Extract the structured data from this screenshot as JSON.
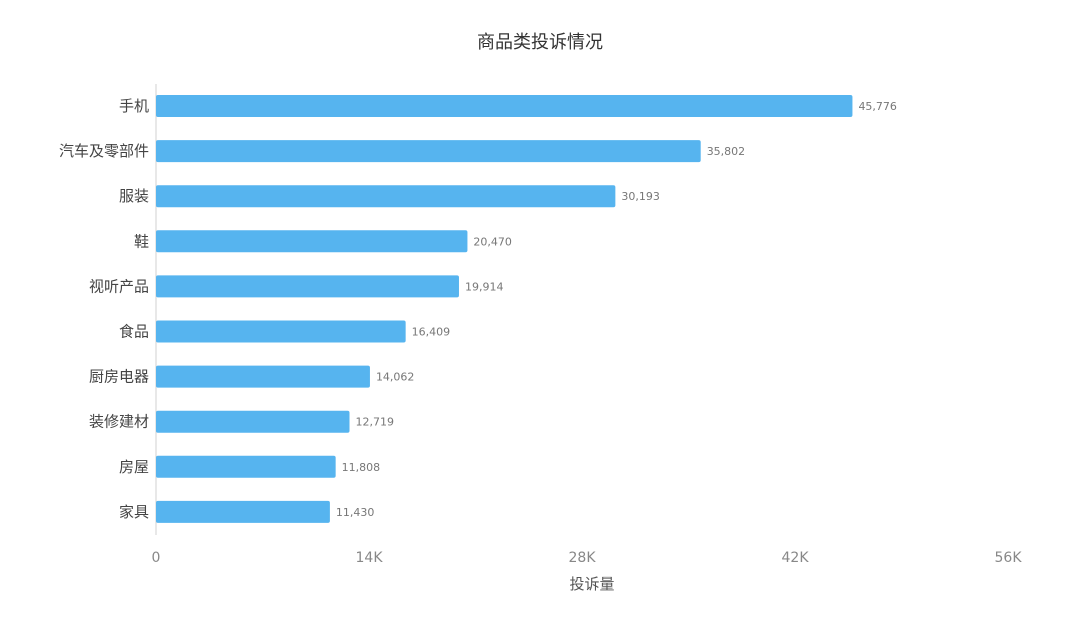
{
  "chart_data": {
    "type": "bar",
    "orientation": "horizontal",
    "title": "商品类投诉情况",
    "xlabel": "投诉量",
    "ylabel": "",
    "categories": [
      "手机",
      "汽车及零部件",
      "服装",
      "鞋",
      "视听产品",
      "食品",
      "厨房电器",
      "装修建材",
      "房屋",
      "家具"
    ],
    "values": [
      45776,
      35802,
      30193,
      20470,
      19914,
      16409,
      14062,
      12719,
      11808,
      11430
    ],
    "value_labels": [
      "45,776",
      "35,802",
      "30,193",
      "20,470",
      "19,914",
      "16,409",
      "14,062",
      "12,719",
      "11,808",
      "11,430"
    ],
    "xlim": [
      0,
      56000
    ],
    "x_ticks": [
      0,
      14000,
      28000,
      42000,
      56000
    ],
    "x_tick_labels": [
      "0",
      "14K",
      "28K",
      "42K",
      "56K"
    ],
    "grid": false,
    "bar_color": "#56b4ef"
  }
}
